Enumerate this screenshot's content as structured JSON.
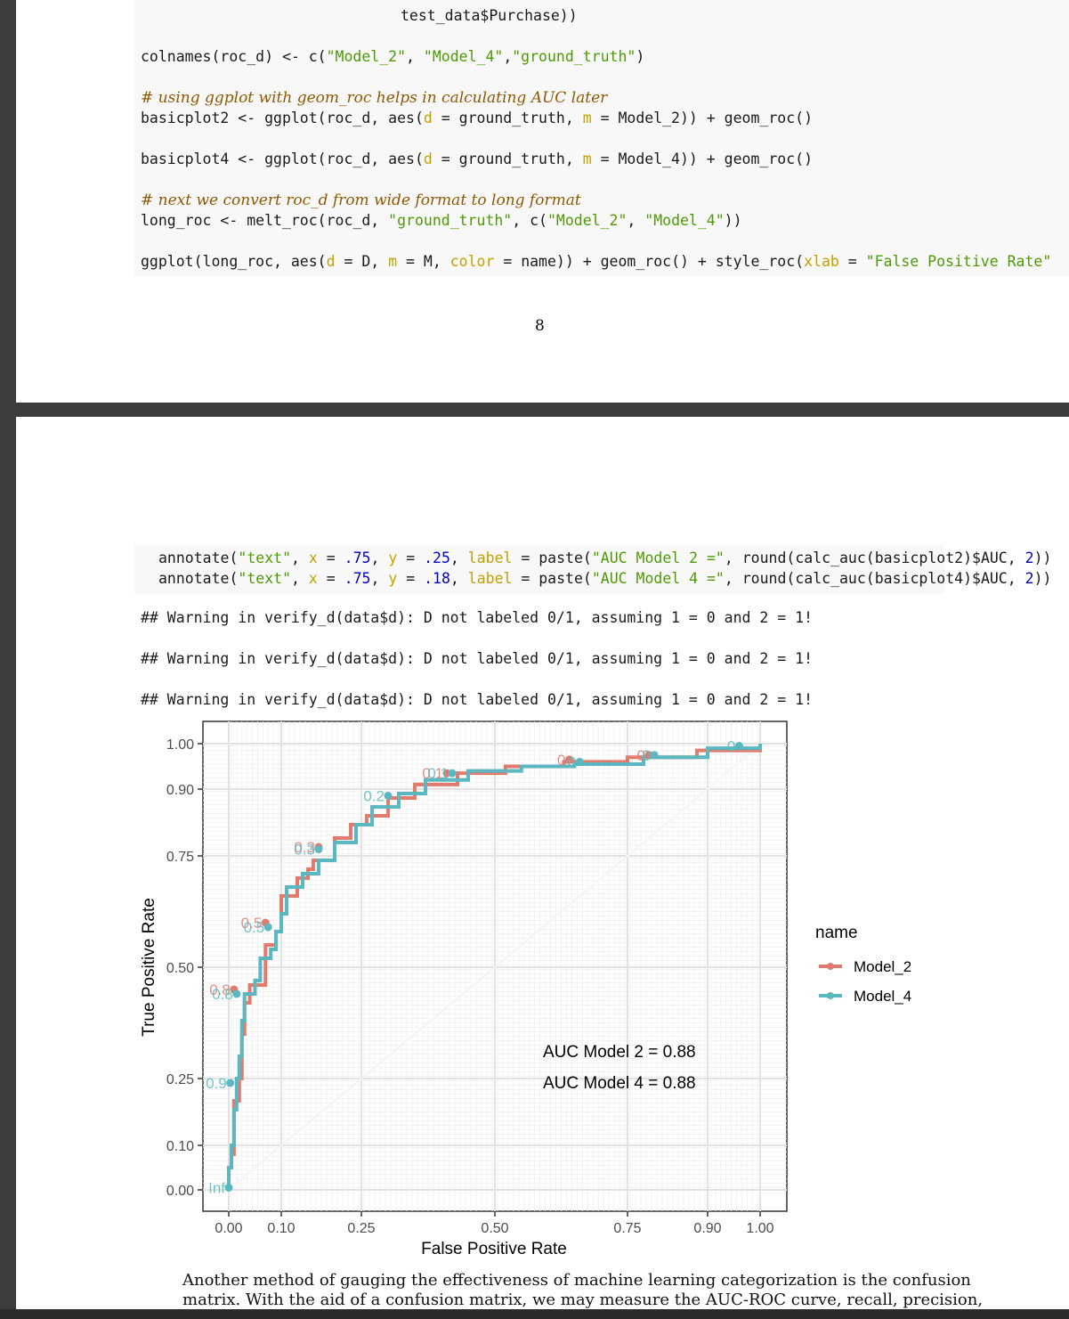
{
  "page1": {
    "code_lines": {
      "l0": "test_data$Purchase))",
      "l1_a": "colnames(roc_d) <- c(",
      "l1_s1": "\"Model_2\"",
      "l1_b": ", ",
      "l1_s2": "\"Model_4\"",
      "l1_c": ",",
      "l1_s3": "\"ground_truth\"",
      "l1_d": ")",
      "l2": "# using ggplot with geom_roc helps in calculating AUC later",
      "l3_a": "basicplot2 <- ggplot(roc_d, aes(",
      "l3_d": "d",
      "l3_b": " = ground_truth, ",
      "l3_m": "m",
      "l3_c": " = Model_2)) + geom_roc()",
      "l4_a": "basicplot4 <- ggplot(roc_d, aes(",
      "l4_d": "d",
      "l4_b": " = ground_truth, ",
      "l4_m": "m",
      "l4_c": " = Model_4)) + geom_roc()",
      "l5": "# next we convert roc_d from wide format to long format",
      "l6_a": "long_roc <- melt_roc(roc_d, ",
      "l6_s1": "\"ground_truth\"",
      "l6_b": ", c(",
      "l6_s2": "\"Model_2\"",
      "l6_c": ", ",
      "l6_s3": "\"Model_4\"",
      "l6_d": "))",
      "l7_a": "ggplot(long_roc, aes(",
      "l7_d": "d",
      "l7_b": " = D, ",
      "l7_m": "m",
      "l7_c": " = M, ",
      "l7_col": "color",
      "l7_e": " = name)) + geom_roc() + style_roc(",
      "l7_x": "xlab",
      "l7_f": " = ",
      "l7_s": "\"False Positive Rate\""
    },
    "page_number": "8"
  },
  "page2": {
    "code_lines": {
      "a1_a": "annotate(",
      "a1_s": "\"text\"",
      "a1_b": ", ",
      "a1_x": "x",
      "a1_c": " = ",
      "a1_xv": ".75",
      "a1_d": ", ",
      "a1_y": "y",
      "a1_e": " = ",
      "a1_yv": ".25",
      "a1_f": ", ",
      "a1_l": "label",
      "a1_g": " = paste(",
      "a1_s2": "\"AUC Model 2 =\"",
      "a1_h": ", round(calc_auc(basicplot2)$AUC, ",
      "a1_n": "2",
      "a1_i": "))",
      "a2_a": "annotate(",
      "a2_s": "\"text\"",
      "a2_b": ", ",
      "a2_x": "x",
      "a2_c": " = ",
      "a2_xv": ".75",
      "a2_d": ", ",
      "a2_y": "y",
      "a2_e": " = ",
      "a2_yv": ".18",
      "a2_f": ", ",
      "a2_l": "label",
      "a2_g": " = paste(",
      "a2_s2": "\"AUC Model 4 =\"",
      "a2_h": ", round(calc_auc(basicplot4)$AUC, ",
      "a2_n": "2",
      "a2_i": "))"
    },
    "warnings": [
      "## Warning in verify_d(data$d): D not labeled 0/1, assuming 1 = 0 and 2 = 1!",
      "## Warning in verify_d(data$d): D not labeled 0/1, assuming 1 = 0 and 2 = 1!",
      "## Warning in verify_d(data$d): D not labeled 0/1, assuming 1 = 0 and 2 = 1!"
    ],
    "paragraph": [
      "Another method of gauging the effectiveness of machine learning categorization is the confusion",
      "matrix. With the aid of a confusion matrix, we may measure the AUC-ROC curve, recall, precision,"
    ]
  },
  "colors": {
    "model_2": "#e07b6e",
    "model_4": "#5bb8c0",
    "code_bg": "#f8f8f8",
    "page_bg": "#ffffff",
    "viewer_bg": "#3c3c3c"
  },
  "chart_data": {
    "type": "line",
    "xlabel": "False Positive Rate",
    "ylabel": "True Positive Rate",
    "xlim": [
      0,
      1
    ],
    "ylim": [
      0,
      1
    ],
    "scale": "style_roc (probit-like spacing)",
    "x_ticks": [
      0,
      0.1,
      0.25,
      0.5,
      0.75,
      0.9,
      1
    ],
    "x_tick_labels": [
      "0.00",
      "0.10",
      "0.25",
      "0.50",
      "0.75",
      "0.90",
      "1.00"
    ],
    "y_ticks": [
      0,
      0.1,
      0.25,
      0.5,
      0.75,
      0.9,
      1
    ],
    "y_tick_labels": [
      "0.00",
      "0.10",
      "0.25",
      "0.50",
      "0.75",
      "0.90",
      "1.00"
    ],
    "grid": true,
    "legend_title": "name",
    "legend_position": "right",
    "series": [
      {
        "name": "Model_2",
        "color": "#e07b6e",
        "points": [
          [
            0,
            0
          ],
          [
            0,
            0.05
          ],
          [
            0.005,
            0.08
          ],
          [
            0.01,
            0.2
          ],
          [
            0.02,
            0.25
          ],
          [
            0.025,
            0.35
          ],
          [
            0.03,
            0.42
          ],
          [
            0.04,
            0.46
          ],
          [
            0.07,
            0.5
          ],
          [
            0.07,
            0.55
          ],
          [
            0.09,
            0.58
          ],
          [
            0.1,
            0.6
          ],
          [
            0.1,
            0.66
          ],
          [
            0.13,
            0.7
          ],
          [
            0.15,
            0.72
          ],
          [
            0.16,
            0.74
          ],
          [
            0.2,
            0.79
          ],
          [
            0.23,
            0.82
          ],
          [
            0.26,
            0.84
          ],
          [
            0.3,
            0.88
          ],
          [
            0.35,
            0.91
          ],
          [
            0.43,
            0.935
          ],
          [
            0.52,
            0.95
          ],
          [
            0.63,
            0.96
          ],
          [
            0.75,
            0.97
          ],
          [
            0.88,
            0.985
          ],
          [
            1,
            1
          ]
        ]
      },
      {
        "name": "Model_4",
        "color": "#5bb8c0",
        "points": [
          [
            0,
            0
          ],
          [
            0,
            0.05
          ],
          [
            0.005,
            0.1
          ],
          [
            0.01,
            0.18
          ],
          [
            0.015,
            0.25
          ],
          [
            0.02,
            0.3
          ],
          [
            0.025,
            0.38
          ],
          [
            0.03,
            0.44
          ],
          [
            0.05,
            0.47
          ],
          [
            0.06,
            0.52
          ],
          [
            0.08,
            0.54
          ],
          [
            0.09,
            0.58
          ],
          [
            0.1,
            0.62
          ],
          [
            0.11,
            0.68
          ],
          [
            0.14,
            0.71
          ],
          [
            0.17,
            0.74
          ],
          [
            0.2,
            0.78
          ],
          [
            0.24,
            0.82
          ],
          [
            0.27,
            0.86
          ],
          [
            0.32,
            0.89
          ],
          [
            0.37,
            0.92
          ],
          [
            0.45,
            0.94
          ],
          [
            0.55,
            0.95
          ],
          [
            0.65,
            0.955
          ],
          [
            0.78,
            0.97
          ],
          [
            0.9,
            0.99
          ],
          [
            1,
            1
          ]
        ]
      }
    ],
    "threshold_labels": [
      {
        "series": "Model_2",
        "label": "0",
        "x": 0.64,
        "y": 0.965
      },
      {
        "series": "Model_4",
        "label": "0",
        "x": 0.66,
        "y": 0.96
      },
      {
        "series": "Model_2",
        "label": "0",
        "x": 0.79,
        "y": 0.975
      },
      {
        "series": "Model_4",
        "label": "0",
        "x": 0.8,
        "y": 0.975
      },
      {
        "series": "Model_4",
        "label": "0",
        "x": 0.96,
        "y": 0.995
      },
      {
        "series": "Model_2",
        "label": "0.1",
        "x": 0.41,
        "y": 0.935
      },
      {
        "series": "Model_4",
        "label": "0.1",
        "x": 0.42,
        "y": 0.935
      },
      {
        "series": "Model_4",
        "label": "0.2",
        "x": 0.3,
        "y": 0.885
      },
      {
        "series": "Model_2",
        "label": "0.3",
        "x": 0.17,
        "y": 0.77
      },
      {
        "series": "Model_4",
        "label": "0.3",
        "x": 0.17,
        "y": 0.765
      },
      {
        "series": "Model_2",
        "label": "0.5",
        "x": 0.07,
        "y": 0.6
      },
      {
        "series": "Model_4",
        "label": "0.5",
        "x": 0.075,
        "y": 0.59
      },
      {
        "series": "Model_2",
        "label": "0.8",
        "x": 0.01,
        "y": 0.45
      },
      {
        "series": "Model_4",
        "label": "0.8",
        "x": 0.015,
        "y": 0.44
      },
      {
        "series": "Model_4",
        "label": "0.9",
        "x": 0.003,
        "y": 0.24
      },
      {
        "series": "Model_4",
        "label": "Inf",
        "x": 0,
        "y": 0.005
      }
    ],
    "annotations": [
      "AUC Model 2 = 0.88",
      "AUC Model 4 = 0.88"
    ]
  }
}
